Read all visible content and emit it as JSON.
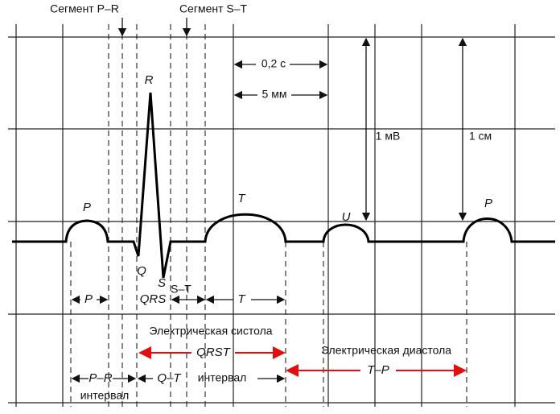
{
  "segments": {
    "pr": "Сегмент P–R",
    "st": "Сегмент S–T"
  },
  "scale": {
    "time": "0,2 с",
    "length": "5 мм",
    "voltage": "1 мВ",
    "height": "1 см"
  },
  "waves": {
    "p1": "P",
    "r": "R",
    "q": "Q",
    "s": "S",
    "t": "T",
    "u": "U",
    "p2": "P"
  },
  "intervals": {
    "p": "P",
    "qrs": "QRS",
    "st": "S–T",
    "t": "T",
    "systole": "Электрическая систола",
    "qrst": "QRST",
    "diastole": "Электрическая диастола",
    "tp": "T–P",
    "pr": "P–R",
    "pr_word": "интервал",
    "qt": "Q–T",
    "qt_word": "интервал"
  }
}
